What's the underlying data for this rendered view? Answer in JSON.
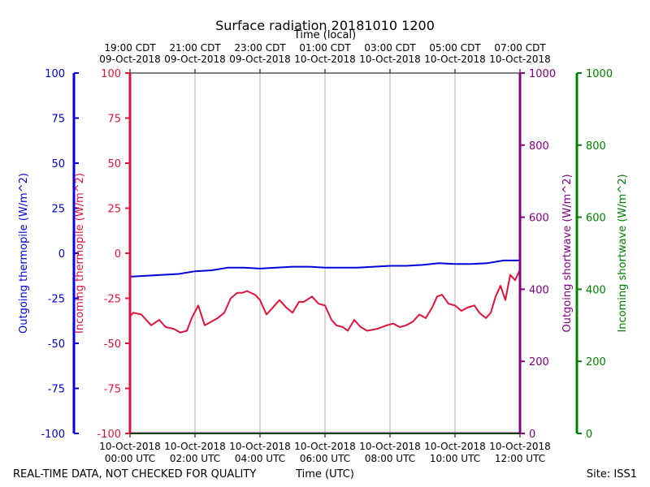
{
  "chart_data": {
    "type": "line",
    "title": "Surface radiation 20181010 1200",
    "top_axis_label": "Time (local)",
    "xlabel": "Time (UTC)",
    "footer_left": "REAL-TIME DATA, NOT CHECKED FOR QUALITY",
    "footer_right": "Site: ISS1",
    "grid": "vertical",
    "xlim": [
      "2018-10-10T00:00Z",
      "2018-10-10T12:00Z"
    ],
    "bottom_ticks": [
      {
        "hours": 0,
        "line1": "10-Oct-2018",
        "line2": "00:00 UTC"
      },
      {
        "hours": 2,
        "line1": "10-Oct-2018",
        "line2": "02:00 UTC"
      },
      {
        "hours": 4,
        "line1": "10-Oct-2018",
        "line2": "04:00 UTC"
      },
      {
        "hours": 6,
        "line1": "10-Oct-2018",
        "line2": "06:00 UTC"
      },
      {
        "hours": 8,
        "line1": "10-Oct-2018",
        "line2": "08:00 UTC"
      },
      {
        "hours": 10,
        "line1": "10-Oct-2018",
        "line2": "10:00 UTC"
      },
      {
        "hours": 12,
        "line1": "10-Oct-2018",
        "line2": "12:00 UTC"
      }
    ],
    "top_ticks": [
      {
        "hours": 0,
        "line1": "19:00 CDT",
        "line2": "09-Oct-2018"
      },
      {
        "hours": 2,
        "line1": "21:00 CDT",
        "line2": "09-Oct-2018"
      },
      {
        "hours": 4,
        "line1": "23:00 CDT",
        "line2": "09-Oct-2018"
      },
      {
        "hours": 6,
        "line1": "01:00 CDT",
        "line2": "10-Oct-2018"
      },
      {
        "hours": 8,
        "line1": "03:00 CDT",
        "line2": "10-Oct-2018"
      },
      {
        "hours": 10,
        "line1": "05:00 CDT",
        "line2": "10-Oct-2018"
      },
      {
        "hours": 12,
        "line1": "07:00 CDT",
        "line2": "10-Oct-2018"
      }
    ],
    "axes": {
      "outgoing_thermopile": {
        "label": "Outgoing thermopile (W/m^2)",
        "color": "#0000dd",
        "ylim": [
          -100,
          100
        ],
        "ticks": [
          100,
          75,
          50,
          25,
          0,
          -25,
          -50,
          -75,
          -100
        ]
      },
      "incoming_thermopile": {
        "label": "Incoming thermopile (W/m^2)",
        "color": "#dc143c",
        "ylim": [
          -100,
          100
        ],
        "ticks": [
          100,
          75,
          50,
          25,
          0,
          -25,
          -50,
          -75,
          -100
        ]
      },
      "outgoing_shortwave": {
        "label": "Outgoing shortwave (W/m^2)",
        "color": "#800080",
        "ylim": [
          0,
          1000
        ],
        "ticks": [
          0,
          200,
          400,
          600,
          800,
          1000
        ]
      },
      "incoming_shortwave": {
        "label": "Incoming shortwave (W/m^2)",
        "color": "#008000",
        "ylim": [
          0,
          1000
        ],
        "ticks": [
          0,
          200,
          400,
          600,
          800,
          1000
        ]
      }
    },
    "series": [
      {
        "axis": "outgoing_thermopile",
        "x_hours": [
          0.0,
          0.5,
          1.0,
          1.5,
          2.0,
          2.5,
          3.0,
          3.5,
          4.0,
          4.5,
          5.0,
          5.5,
          6.0,
          6.5,
          7.0,
          7.5,
          8.0,
          8.5,
          9.0,
          9.5,
          10.0,
          10.5,
          11.0,
          11.5,
          12.0
        ],
        "values": [
          -13,
          -12.5,
          -12,
          -11.5,
          -10,
          -9.5,
          -8,
          -8,
          -8.5,
          -8,
          -7.5,
          -7.5,
          -8,
          -8,
          -8,
          -7.5,
          -7,
          -7,
          -6.5,
          -5.5,
          -6,
          -6,
          -5.5,
          -4,
          -4
        ]
      },
      {
        "axis": "incoming_thermopile",
        "x_hours": [
          0.0,
          0.1,
          0.35,
          0.65,
          0.9,
          1.1,
          1.35,
          1.55,
          1.75,
          1.9,
          2.1,
          2.3,
          2.5,
          2.7,
          2.9,
          3.1,
          3.3,
          3.45,
          3.6,
          3.85,
          4.0,
          4.2,
          4.45,
          4.6,
          4.8,
          5.0,
          5.2,
          5.35,
          5.6,
          5.8,
          6.0,
          6.2,
          6.35,
          6.55,
          6.7,
          6.9,
          7.1,
          7.3,
          7.6,
          7.9,
          8.1,
          8.3,
          8.5,
          8.7,
          8.9,
          9.1,
          9.3,
          9.45,
          9.6,
          9.8,
          10.0,
          10.2,
          10.4,
          10.6,
          10.75,
          10.95,
          11.1,
          11.25,
          11.4,
          11.55,
          11.7,
          11.85,
          12.0
        ],
        "values": [
          -35,
          -33,
          -34,
          -40,
          -37,
          -41,
          -42,
          -44,
          -43,
          -36,
          -29,
          -40,
          -38,
          -36,
          -33,
          -25,
          -22,
          -22,
          -21,
          -23,
          -26,
          -34,
          -29,
          -26,
          -30,
          -33,
          -27,
          -27,
          -24,
          -28,
          -29,
          -37,
          -40,
          -41,
          -43,
          -37,
          -41,
          -43,
          -42,
          -40,
          -39,
          -41,
          -40,
          -38,
          -34,
          -36,
          -30,
          -24,
          -23,
          -28,
          -29,
          -32,
          -30,
          -29,
          -33,
          -36,
          -33,
          -24,
          -18,
          -26,
          -12,
          -15,
          -9
        ]
      },
      {
        "axis": "outgoing_shortwave",
        "x_hours": [
          0,
          12
        ],
        "values": [
          1,
          1
        ]
      },
      {
        "axis": "incoming_shortwave",
        "x_hours": [
          0,
          12
        ],
        "values": [
          0,
          0
        ]
      }
    ]
  }
}
